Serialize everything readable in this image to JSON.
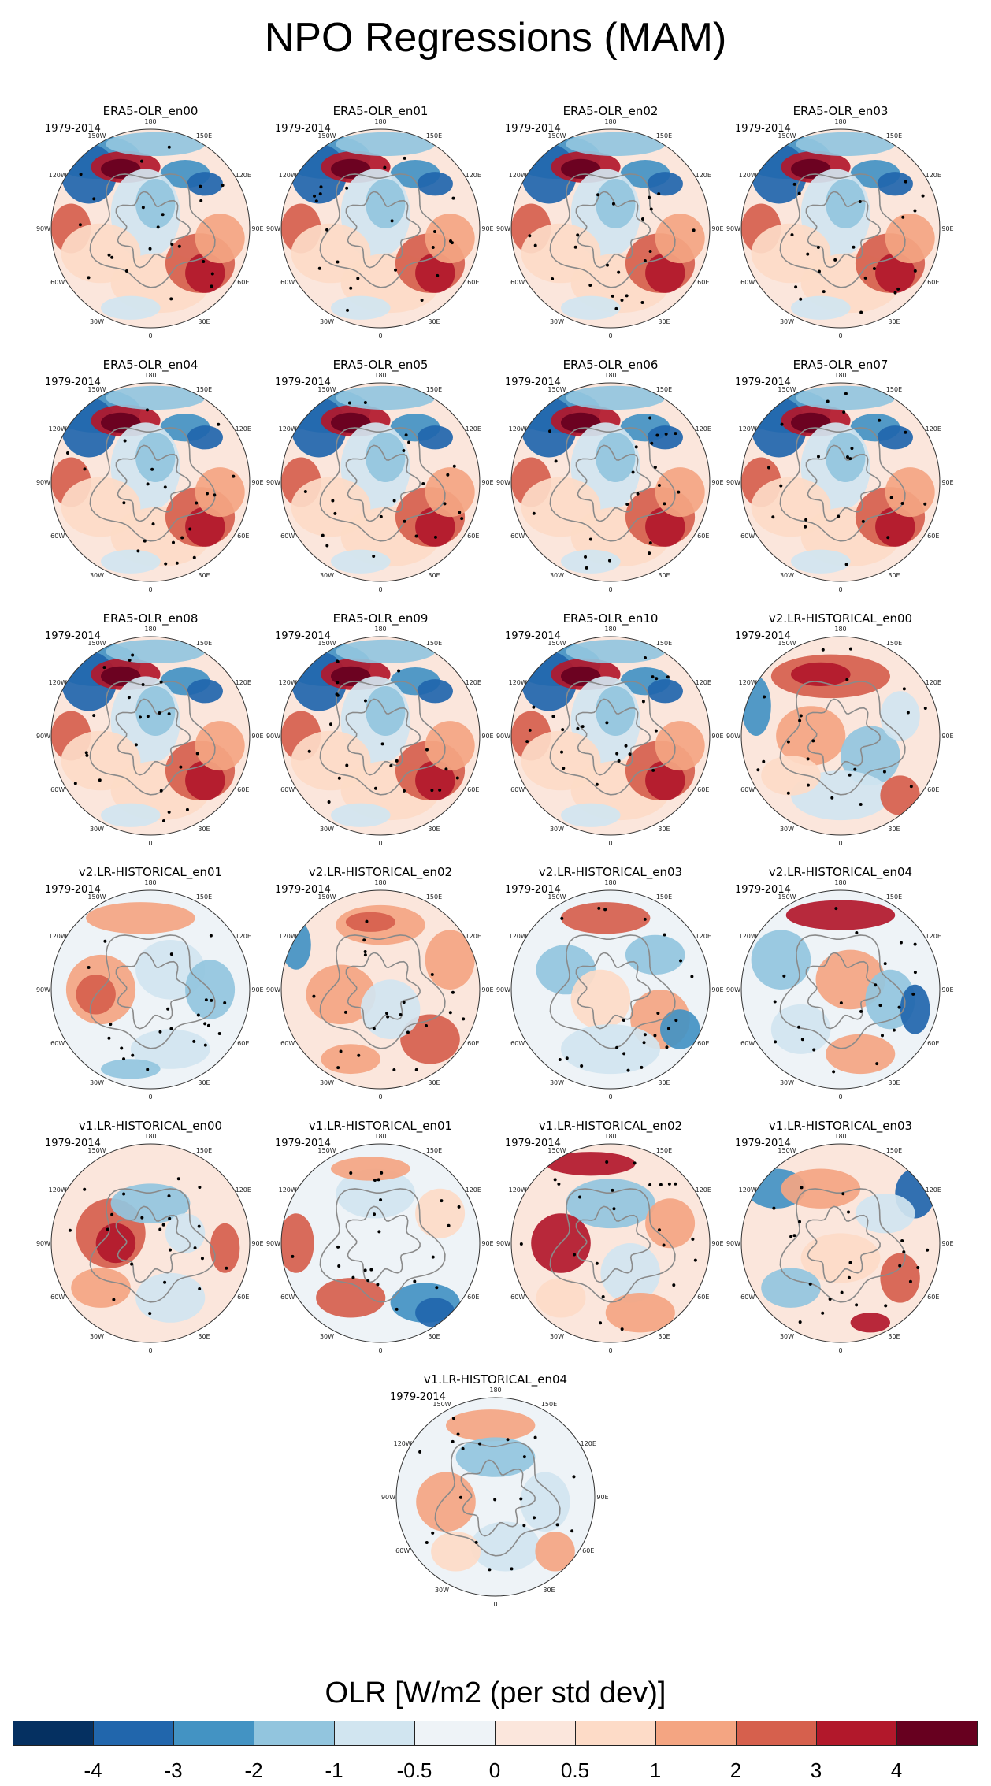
{
  "title": "NPO Regressions (MAM)",
  "period": "1979-2014",
  "lon_labels": [
    "180",
    "150E",
    "120E",
    "90E",
    "60E",
    "30E",
    "0",
    "30W",
    "60W",
    "90W",
    "120W",
    "150W"
  ],
  "panels": [
    {
      "name": "ERA5-OLR_en00",
      "style": "era5"
    },
    {
      "name": "ERA5-OLR_en01",
      "style": "era5"
    },
    {
      "name": "ERA5-OLR_en02",
      "style": "era5"
    },
    {
      "name": "ERA5-OLR_en03",
      "style": "era5"
    },
    {
      "name": "ERA5-OLR_en04",
      "style": "era5"
    },
    {
      "name": "ERA5-OLR_en05",
      "style": "era5"
    },
    {
      "name": "ERA5-OLR_en06",
      "style": "era5"
    },
    {
      "name": "ERA5-OLR_en07",
      "style": "era5"
    },
    {
      "name": "ERA5-OLR_en08",
      "style": "era5"
    },
    {
      "name": "ERA5-OLR_en09",
      "style": "era5"
    },
    {
      "name": "ERA5-OLR_en10",
      "style": "era5"
    },
    {
      "name": "v2.LR-HISTORICAL_en00",
      "style": "v2a"
    },
    {
      "name": "v2.LR-HISTORICAL_en01",
      "style": "v2b"
    },
    {
      "name": "v2.LR-HISTORICAL_en02",
      "style": "v2c"
    },
    {
      "name": "v2.LR-HISTORICAL_en03",
      "style": "v2d"
    },
    {
      "name": "v2.LR-HISTORICAL_en04",
      "style": "v2e"
    },
    {
      "name": "v1.LR-HISTORICAL_en00",
      "style": "v1a"
    },
    {
      "name": "v1.LR-HISTORICAL_en01",
      "style": "v1b"
    },
    {
      "name": "v1.LR-HISTORICAL_en02",
      "style": "v1c"
    },
    {
      "name": "v1.LR-HISTORICAL_en03",
      "style": "v1d"
    },
    {
      "name": "v1.LR-HISTORICAL_en04",
      "style": "v1e"
    }
  ],
  "colorbar": {
    "title": "OLR [W/m2 (per std dev)]",
    "colors": [
      "#053061",
      "#2166ac",
      "#4393c3",
      "#92c5de",
      "#d1e5f0",
      "#eef3f7",
      "#fbe6dc",
      "#fddbc7",
      "#f4a582",
      "#d6604d",
      "#b2182b",
      "#67001f"
    ],
    "ticks": [
      "-4",
      "-3",
      "-2",
      "-1",
      "-0.5",
      "0",
      "0.5",
      "1",
      "2",
      "3",
      "4"
    ]
  }
}
